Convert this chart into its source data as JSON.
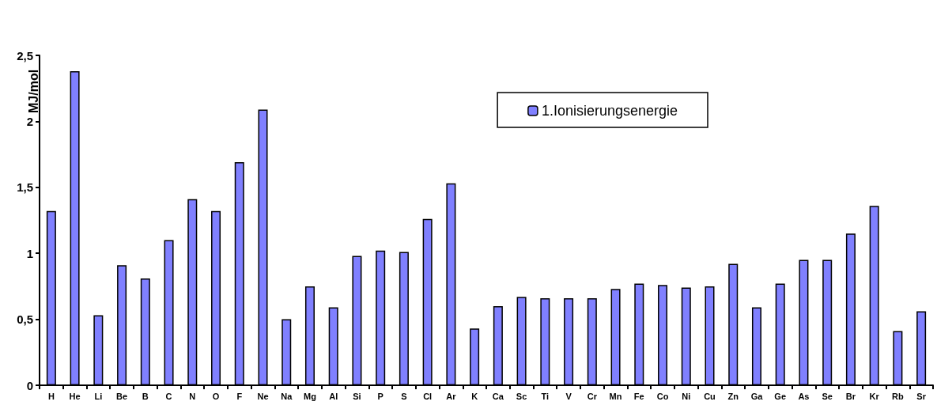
{
  "chart_data": {
    "type": "bar",
    "ylabel": "MJ/mol",
    "categories": [
      "H",
      "He",
      "Li",
      "Be",
      "B",
      "C",
      "N",
      "O",
      "F",
      "Ne",
      "Na",
      "Mg",
      "Al",
      "Si",
      "P",
      "S",
      "Cl",
      "Ar",
      "K",
      "Ca",
      "Sc",
      "Ti",
      "V",
      "Cr",
      "Mn",
      "Fe",
      "Co",
      "Ni",
      "Cu",
      "Zn",
      "Ga",
      "Ge",
      "As",
      "Se",
      "Br",
      "Kr",
      "Rb",
      "Sr"
    ],
    "series": [
      {
        "name": "1.Ionisierungsenergie",
        "color": "#8080ff",
        "values": [
          1.32,
          2.38,
          0.53,
          0.91,
          0.81,
          1.1,
          1.41,
          1.32,
          1.69,
          2.09,
          0.5,
          0.75,
          0.59,
          0.98,
          1.02,
          1.01,
          1.26,
          1.53,
          0.43,
          0.6,
          0.67,
          0.66,
          0.66,
          0.66,
          0.73,
          0.77,
          0.76,
          0.74,
          0.75,
          0.92,
          0.59,
          0.77,
          0.95,
          0.95,
          1.15,
          1.36,
          0.41,
          0.56
        ]
      }
    ],
    "ylim": [
      0,
      2.5
    ],
    "yticks": [
      0,
      {
        "value": 0.5,
        "label": "0,5"
      },
      1,
      {
        "value": 1.5,
        "label": "1,5"
      },
      2,
      {
        "value": 2.5,
        "label": "2,5"
      }
    ],
    "grid": false,
    "legend": "top right"
  }
}
